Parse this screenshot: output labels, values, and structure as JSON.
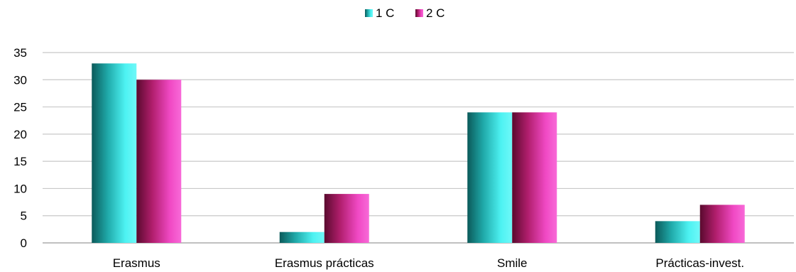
{
  "chart_data": {
    "type": "bar",
    "title": "",
    "xlabel": "",
    "ylabel": "",
    "categories": [
      "Erasmus",
      "Erasmus prácticas",
      "Smile",
      "Prácticas-invest."
    ],
    "series": [
      {
        "name": "1 C",
        "values": [
          33,
          2,
          24,
          4
        ],
        "color": "#2fe0e0"
      },
      {
        "name": "2 C",
        "values": [
          30,
          9,
          24,
          7
        ],
        "color": "#e0309a"
      }
    ],
    "ylim": [
      0,
      35
    ],
    "yticks": [
      "0",
      "5",
      "10",
      "15",
      "20",
      "25",
      "30",
      "35"
    ],
    "grid": true,
    "legend_position": "top-center"
  }
}
